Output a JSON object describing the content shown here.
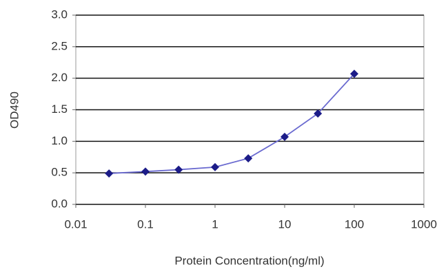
{
  "chart_data": {
    "type": "line",
    "x_label": "Protein Concentration(ng/ml)",
    "y_label": "OD490",
    "x": [
      0.03,
      0.1,
      0.3,
      1,
      3,
      10,
      30,
      100
    ],
    "series": [
      {
        "color": "#6a6ad0",
        "marker_color": "#1c1c88",
        "values": [
          0.49,
          0.52,
          0.55,
          0.59,
          0.73,
          1.07,
          1.44,
          2.07
        ]
      }
    ],
    "xlim": [
      0.01,
      1000
    ],
    "xticks": [
      0.01,
      0.1,
      1,
      10,
      100,
      1000
    ],
    "xscale": "log",
    "ylim": [
      0,
      3
    ],
    "yticks": [
      {
        "value": 0,
        "label": "0.0"
      },
      0.5,
      {
        "value": 1,
        "label": "1.0"
      },
      1.5,
      {
        "value": 2,
        "label": "2.0"
      },
      2.5,
      {
        "value": 3,
        "label": "3.0"
      }
    ],
    "grid": true
  }
}
